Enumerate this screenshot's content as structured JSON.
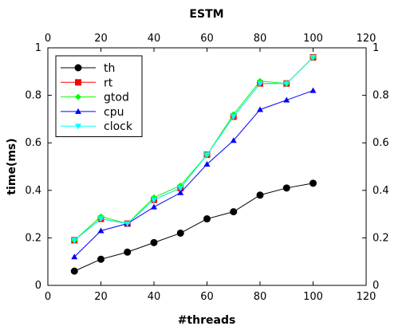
{
  "chart_data": {
    "type": "line",
    "title": "ESTM",
    "xlabel": "#threads",
    "ylabel": "time(ms)",
    "xlim": [
      0,
      120
    ],
    "ylim": [
      0,
      1
    ],
    "xticks": [
      0,
      20,
      40,
      60,
      80,
      100,
      120
    ],
    "yticks": [
      0,
      0.2,
      0.4,
      0.6,
      0.8,
      1
    ],
    "xtick_labels": [
      "0",
      "20",
      "40",
      "60",
      "80",
      "100",
      "120"
    ],
    "ytick_labels": [
      "0",
      "0.2",
      "0.4",
      "0.6",
      "0.8",
      "1"
    ],
    "mirror_axes": true,
    "grid": false,
    "legend_position": "top-left",
    "x": [
      10,
      20,
      30,
      40,
      50,
      60,
      70,
      80,
      90,
      100
    ],
    "series": [
      {
        "name": "th",
        "color": "#000000",
        "marker": "circle",
        "values": [
          0.06,
          0.11,
          0.14,
          0.18,
          0.22,
          0.28,
          0.31,
          0.38,
          0.41,
          0.43
        ]
      },
      {
        "name": "rt",
        "color": "#ff0000",
        "marker": "square",
        "values": [
          0.19,
          0.28,
          0.26,
          0.36,
          0.41,
          0.55,
          0.71,
          0.85,
          0.85,
          0.96
        ]
      },
      {
        "name": "gtod",
        "color": "#00ff00",
        "marker": "diamond",
        "values": [
          0.19,
          0.29,
          0.26,
          0.37,
          0.42,
          0.55,
          0.72,
          0.86,
          0.85,
          0.96
        ]
      },
      {
        "name": "cpu",
        "color": "#0000ff",
        "marker": "triangle-up",
        "values": [
          0.12,
          0.23,
          0.26,
          0.33,
          0.39,
          0.51,
          0.61,
          0.74,
          0.78,
          0.82
        ]
      },
      {
        "name": "clock",
        "color": "#00ffff",
        "marker": "triangle-down",
        "values": [
          0.19,
          0.28,
          0.26,
          0.36,
          0.41,
          0.55,
          0.71,
          0.85,
          0.85,
          0.96
        ]
      }
    ]
  }
}
